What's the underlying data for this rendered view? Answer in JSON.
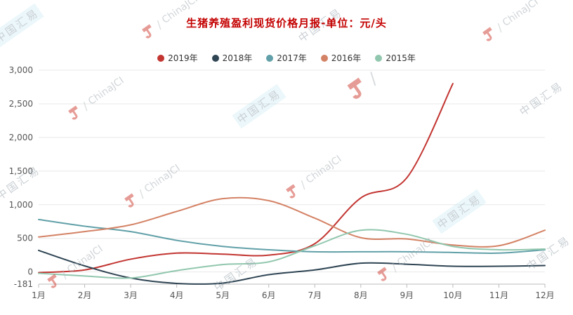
{
  "chart_data": {
    "type": "line",
    "title": "生猪养殖盈利现货价格月报-单位：元/头",
    "unit": "元/头",
    "legend_position": "top",
    "grid": true,
    "categories": [
      "1月",
      "2月",
      "3月",
      "4月",
      "5月",
      "6月",
      "7月",
      "8月",
      "9月",
      "10月",
      "11月",
      "12月"
    ],
    "ylim": [
      -181,
      3000
    ],
    "y_ticks": [
      {
        "value": 3000,
        "label": "3,000"
      },
      {
        "value": 2500,
        "label": "2,500"
      },
      {
        "value": 2000,
        "label": "2,000"
      },
      {
        "value": 1500,
        "label": "1,500"
      },
      {
        "value": 1000,
        "label": "1,000"
      },
      {
        "value": 500,
        "label": "500"
      },
      {
        "value": 0,
        "label": "0"
      },
      {
        "value": -181,
        "label": "-181"
      }
    ],
    "series": [
      {
        "name": "2019年",
        "color": "#c23531",
        "values": [
          -10,
          30,
          190,
          280,
          265,
          250,
          420,
          1100,
          1400,
          2800,
          null,
          null
        ]
      },
      {
        "name": "2018年",
        "color": "#2f4554",
        "values": [
          320,
          90,
          -90,
          -170,
          -165,
          -40,
          30,
          130,
          115,
          85,
          85,
          95
        ]
      },
      {
        "name": "2017年",
        "color": "#61a0a8",
        "values": [
          780,
          680,
          600,
          470,
          380,
          330,
          300,
          300,
          300,
          290,
          280,
          330
        ]
      },
      {
        "name": "2016年",
        "color": "#d48265",
        "values": [
          520,
          600,
          700,
          900,
          1090,
          1060,
          800,
          510,
          490,
          400,
          390,
          620
        ]
      },
      {
        "name": "2015年",
        "color": "#91c7ae",
        "values": [
          -20,
          -60,
          -90,
          20,
          110,
          150,
          390,
          620,
          560,
          380,
          330,
          340
        ]
      }
    ]
  },
  "watermark": {
    "cn": "中国汇易",
    "en": "ChinaJCI"
  },
  "colors": {
    "title": "#c40000",
    "axis_line": "#bbbbbb",
    "grid_line": "#e8e8e8",
    "axis_label": "#555555",
    "logo_red": "#cf3b30"
  }
}
